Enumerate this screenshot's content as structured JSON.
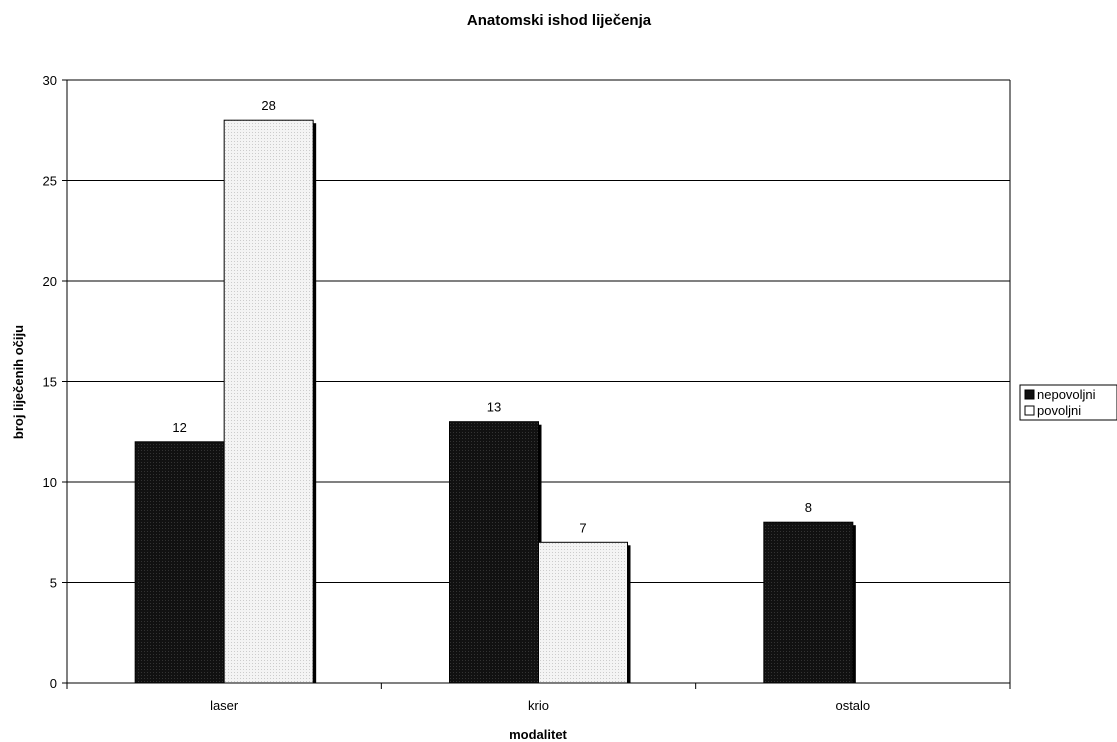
{
  "chart_data": {
    "type": "bar",
    "title": "Anatomski ishod liječenja",
    "xlabel": "modalitet",
    "ylabel": "broj liječenih očiju",
    "categories": [
      "laser",
      "krio",
      "ostalo"
    ],
    "series": [
      {
        "name": "nepovoljni",
        "values": [
          12,
          13,
          8
        ],
        "color": "#111111"
      },
      {
        "name": "povoljni",
        "values": [
          28,
          7,
          null
        ],
        "color": "#eeeeee"
      }
    ],
    "yticks": [
      "0",
      "5",
      "10",
      "15",
      "20",
      "25",
      "30"
    ],
    "ylim": [
      0,
      30
    ],
    "grid": true,
    "legend": "right"
  }
}
